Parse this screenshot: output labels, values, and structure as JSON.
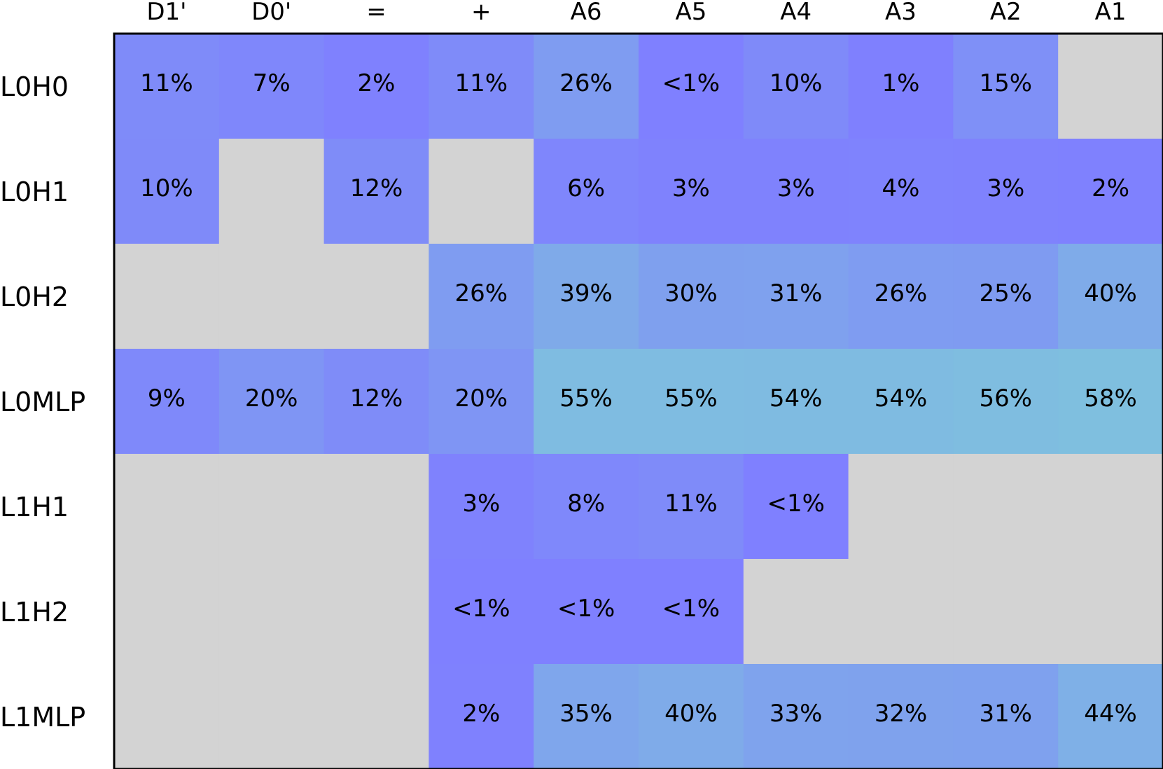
{
  "chart_data": {
    "type": "heatmap",
    "columns": [
      "D1'",
      "D0'",
      "=",
      "+",
      "A6",
      "A5",
      "A4",
      "A3",
      "A2",
      "A1"
    ],
    "rows": [
      "L0H0",
      "L0H1",
      "L0H2",
      "L0MLP",
      "L1H1",
      "L1H2",
      "L1MLP"
    ],
    "cells": [
      [
        "11%",
        "7%",
        "2%",
        "11%",
        "26%",
        "<1%",
        "10%",
        "1%",
        "15%",
        null
      ],
      [
        "10%",
        null,
        "12%",
        null,
        "6%",
        "3%",
        "3%",
        "4%",
        "3%",
        "2%"
      ],
      [
        null,
        null,
        null,
        "26%",
        "39%",
        "30%",
        "31%",
        "26%",
        "25%",
        "40%"
      ],
      [
        "9%",
        "20%",
        "12%",
        "20%",
        "55%",
        "55%",
        "54%",
        "54%",
        "56%",
        "58%"
      ],
      [
        null,
        null,
        null,
        "3%",
        "8%",
        "11%",
        "<1%",
        null,
        null,
        null
      ],
      [
        null,
        null,
        null,
        "<1%",
        "<1%",
        "<1%",
        null,
        null,
        null,
        null
      ],
      [
        null,
        null,
        null,
        "2%",
        "35%",
        "40%",
        "33%",
        "32%",
        "31%",
        "44%"
      ]
    ],
    "colors": {
      "empty": "#d3d3d3",
      "scale": [
        "#7f7fff",
        "#7fbfdf"
      ],
      "scale_max_percent": 58,
      "frame": "#000000",
      "text": "#000000"
    },
    "grid": false
  }
}
